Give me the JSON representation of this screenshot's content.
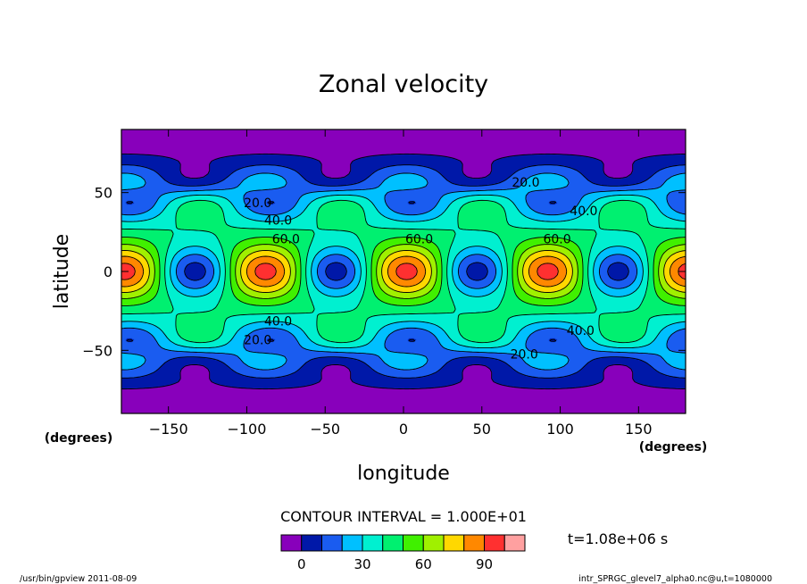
{
  "chart_data": {
    "type": "heatmap",
    "subtype": "filled-contour",
    "title": "Zonal velocity",
    "xlabel": "longitude",
    "ylabel": "latitude",
    "x_units": "(degrees)",
    "y_units": "(degrees)",
    "xlim": [
      -180,
      180
    ],
    "ylim": [
      -90,
      90
    ],
    "x_ticks": [
      -150,
      -100,
      -50,
      0,
      50,
      100,
      150
    ],
    "x_tick_labels": [
      "−150",
      "−100",
      "−50",
      "0",
      "50",
      "100",
      "150"
    ],
    "y_ticks": [
      50,
      0,
      -50
    ],
    "y_tick_labels": [
      "50",
      "0",
      "−50"
    ],
    "contour_interval_text": "CONTOUR INTERVAL = 1.000E+01",
    "time_text": "t=1.08e+06 s",
    "levels": [
      -10,
      0,
      10,
      20,
      30,
      40,
      50,
      60,
      70,
      80,
      90,
      100,
      110
    ],
    "colorbar": {
      "colors": [
        "#8800bb",
        "#0018a8",
        "#1a5cf0",
        "#00c0ff",
        "#00f0d0",
        "#00f070",
        "#40f000",
        "#a0f000",
        "#ffd800",
        "#ff8800",
        "#ff3030",
        "#ffa0a0"
      ],
      "tick_values": [
        0,
        30,
        60,
        90
      ],
      "tick_labels": [
        "0",
        "30",
        "60",
        "90"
      ]
    },
    "contour_labels": [
      {
        "text": "20.0",
        "lon": -93,
        "lat": 43
      },
      {
        "text": "40.0",
        "lon": -80,
        "lat": 32
      },
      {
        "text": "60.0",
        "lon": -75,
        "lat": 20
      },
      {
        "text": "60.0",
        "lon": 10,
        "lat": 20
      },
      {
        "text": "60.0",
        "lon": 98,
        "lat": 20
      },
      {
        "text": "20.0",
        "lon": 78,
        "lat": 56
      },
      {
        "text": "40.0",
        "lon": 115,
        "lat": 38
      },
      {
        "text": "40.0",
        "lon": -80,
        "lat": -32
      },
      {
        "text": "20.0",
        "lon": -93,
        "lat": -44
      },
      {
        "text": "40.0",
        "lon": 113,
        "lat": -38
      },
      {
        "text": "20.0",
        "lon": 77,
        "lat": -53
      }
    ],
    "grid": false
  },
  "footer": {
    "left": "/usr/bin/gpview   2011-08-09",
    "right": "intr_SPRGC_glevel7_alpha0.nc@u,t=1080000"
  }
}
